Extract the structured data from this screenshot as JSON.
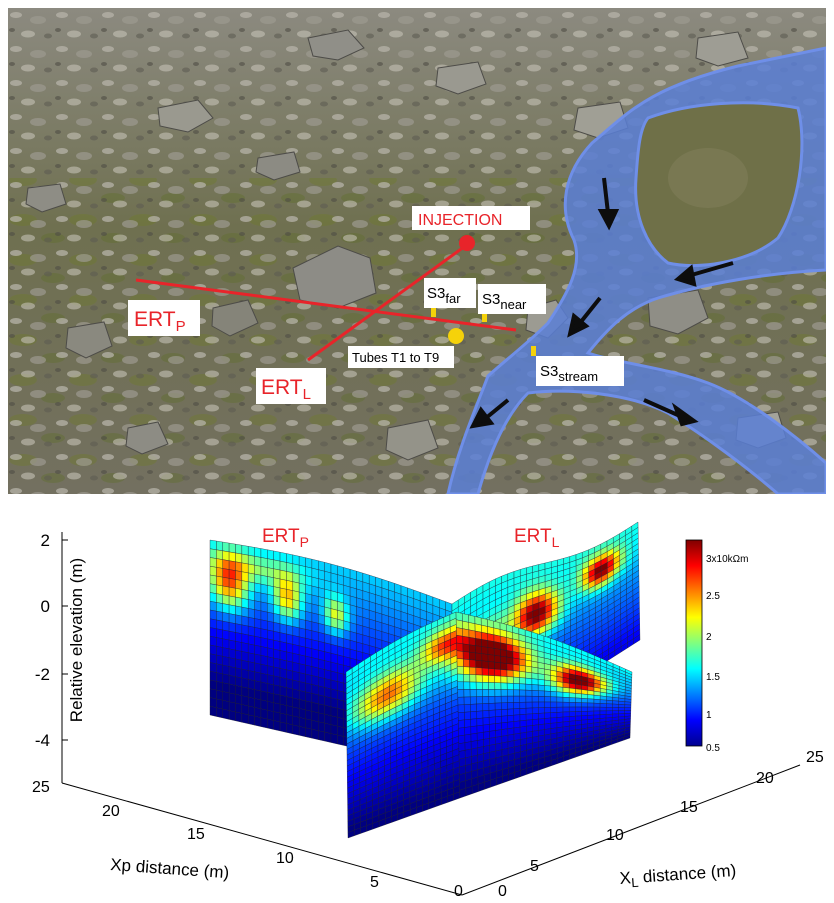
{
  "photo": {
    "labels": {
      "injection": "INJECTION",
      "ert_p": "ERT",
      "ert_p_sub": "P",
      "ert_l": "ERT",
      "ert_l_sub": "L",
      "s3far": "S3",
      "s3far_sub": "far",
      "s3near": "S3",
      "s3near_sub": "near",
      "s3stream": "S3",
      "s3stream_sub": "stream",
      "tubes": "Tubes T1 to T9"
    },
    "colors": {
      "line": "#e8242a",
      "injection_point": "#e8242a",
      "tubes_point": "#f5d20a",
      "sensor": "#f5d20a",
      "stream_fill": "#5a7fd6",
      "stream_edge": "#6f8fe8"
    }
  },
  "chart_data": {
    "type": "surface",
    "ylabel": "Relative elevation (m)",
    "xlabel_p": "Xp distance (m)",
    "xlabel_l_main": "X",
    "xlabel_l_sub": "L",
    "xlabel_l_rest": " distance (m)",
    "z_ticks": [
      "2",
      "0",
      "-2",
      "-4"
    ],
    "xp_ticks": [
      "25",
      "20",
      "15",
      "10",
      "5",
      "0"
    ],
    "xl_ticks": [
      "0",
      "5",
      "10",
      "15",
      "20",
      "25"
    ],
    "zlim": [
      -5,
      2
    ],
    "xp_range": [
      0,
      25
    ],
    "xl_range": [
      0,
      25
    ],
    "profiles": [
      {
        "name": "ERT",
        "sub": "P"
      },
      {
        "name": "ERT",
        "sub": "L"
      }
    ],
    "colorbar": {
      "ticks": [
        "3x10kΩm",
        "2.5",
        "2",
        "1.5",
        "1",
        "0.5"
      ],
      "range": [
        0.5,
        3
      ],
      "colormap": "jet"
    }
  }
}
